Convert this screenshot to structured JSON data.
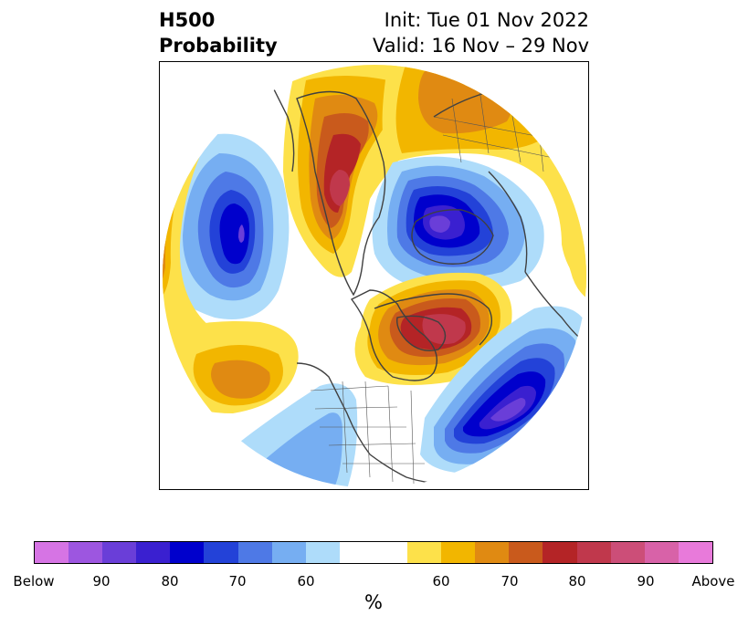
{
  "title": {
    "left_line1": "H500",
    "left_line2": "Probability",
    "right_line1": "Init: Tue 01 Nov 2022",
    "right_line2": "Valid: 16 Nov – 29 Nov"
  },
  "colorbar": {
    "unit": "%",
    "tick_labels": [
      "Below",
      "90",
      "80",
      "70",
      "60",
      "60",
      "70",
      "80",
      "90",
      "Above"
    ],
    "below_colors": [
      "#d674e4",
      "#9d56e0",
      "#6a3ed8",
      "#3a20d0",
      "#0000cc",
      "#2342d8",
      "#4e79e6",
      "#76aef2",
      "#aedcfa"
    ],
    "neutral_color": "#ffffff",
    "above_colors": [
      "#fde14a",
      "#f2b600",
      "#e08a12",
      "#c95a1c",
      "#b42426",
      "#c0384c",
      "#cc4e78",
      "#d862a8",
      "#e87ada"
    ]
  },
  "map": {
    "projection": "north-polar-stereographic",
    "coastline_color": "#404040"
  }
}
